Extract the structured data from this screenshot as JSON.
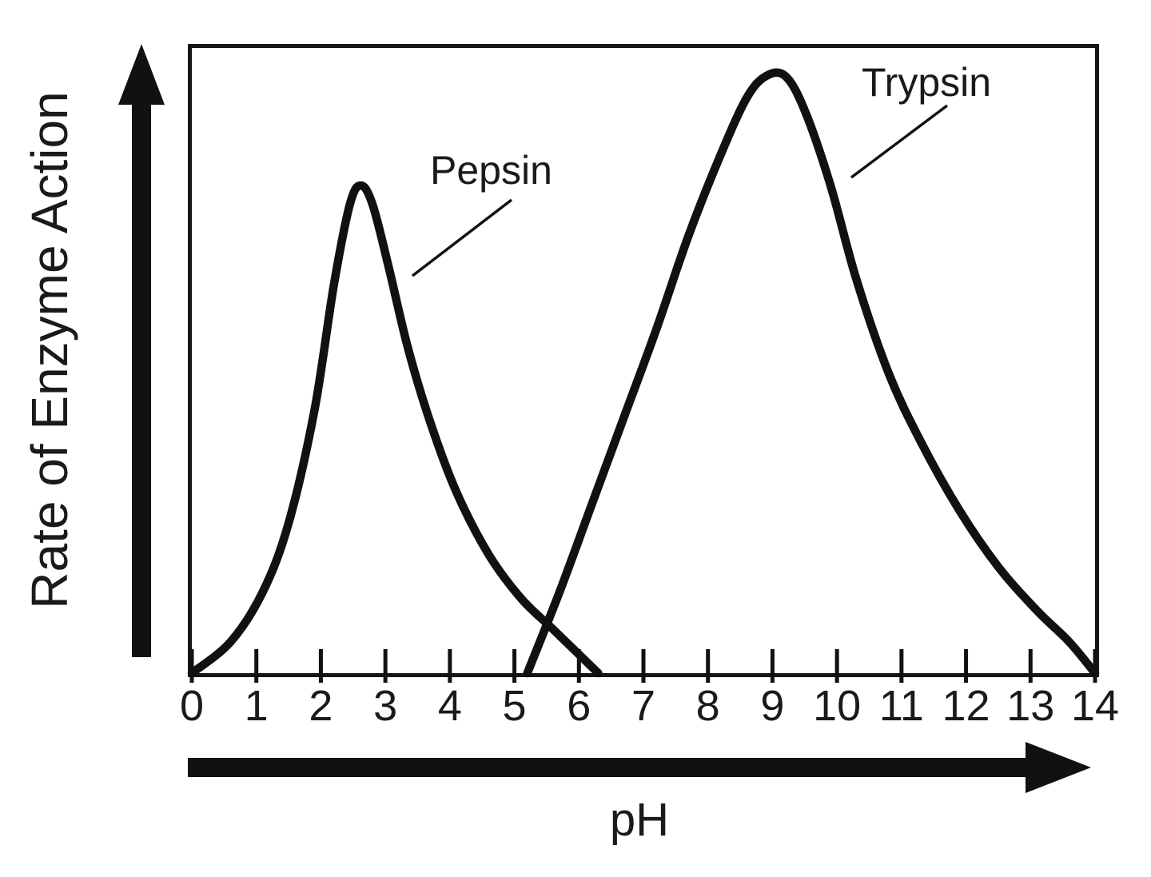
{
  "chart_data": {
    "type": "line",
    "title": "",
    "xlabel": "pH",
    "ylabel": "Rate of Enzyme Action",
    "xlim": [
      0,
      14
    ],
    "ylim": [
      0,
      1
    ],
    "grid": false,
    "x_ticks": [
      0,
      1,
      2,
      3,
      4,
      5,
      6,
      7,
      8,
      9,
      10,
      11,
      12,
      13,
      14
    ],
    "series": [
      {
        "name": "Pepsin",
        "optimum_ph": 2.6,
        "peak_relative_rate": 0.78,
        "points": [
          [
            0,
            0
          ],
          [
            0.6,
            0.05
          ],
          [
            1.1,
            0.13
          ],
          [
            1.5,
            0.24
          ],
          [
            1.9,
            0.42
          ],
          [
            2.2,
            0.62
          ],
          [
            2.45,
            0.75
          ],
          [
            2.62,
            0.78
          ],
          [
            2.8,
            0.75
          ],
          [
            3.05,
            0.65
          ],
          [
            3.35,
            0.52
          ],
          [
            3.7,
            0.4
          ],
          [
            4.1,
            0.29
          ],
          [
            4.6,
            0.19
          ],
          [
            5.1,
            0.12
          ],
          [
            5.6,
            0.07
          ],
          [
            6.3,
            0
          ]
        ]
      },
      {
        "name": "Trypsin",
        "optimum_ph": 9.0,
        "peak_relative_rate": 0.96,
        "points": [
          [
            5.2,
            0
          ],
          [
            5.7,
            0.13
          ],
          [
            6.2,
            0.27
          ],
          [
            6.7,
            0.41
          ],
          [
            7.2,
            0.55
          ],
          [
            7.7,
            0.7
          ],
          [
            8.2,
            0.83
          ],
          [
            8.6,
            0.92
          ],
          [
            8.9,
            0.955
          ],
          [
            9.2,
            0.955
          ],
          [
            9.5,
            0.9
          ],
          [
            9.9,
            0.78
          ],
          [
            10.3,
            0.63
          ],
          [
            10.8,
            0.48
          ],
          [
            11.3,
            0.37
          ],
          [
            11.9,
            0.26
          ],
          [
            12.5,
            0.17
          ],
          [
            13.1,
            0.1
          ],
          [
            13.6,
            0.05
          ],
          [
            14,
            0
          ]
        ]
      }
    ],
    "annotations": [
      {
        "label": "Pepsin",
        "series": "Pepsin"
      },
      {
        "label": "Trypsin",
        "series": "Trypsin"
      }
    ]
  },
  "colors": {
    "curve": "#111111",
    "background": "#ffffff",
    "border": "#161616"
  }
}
